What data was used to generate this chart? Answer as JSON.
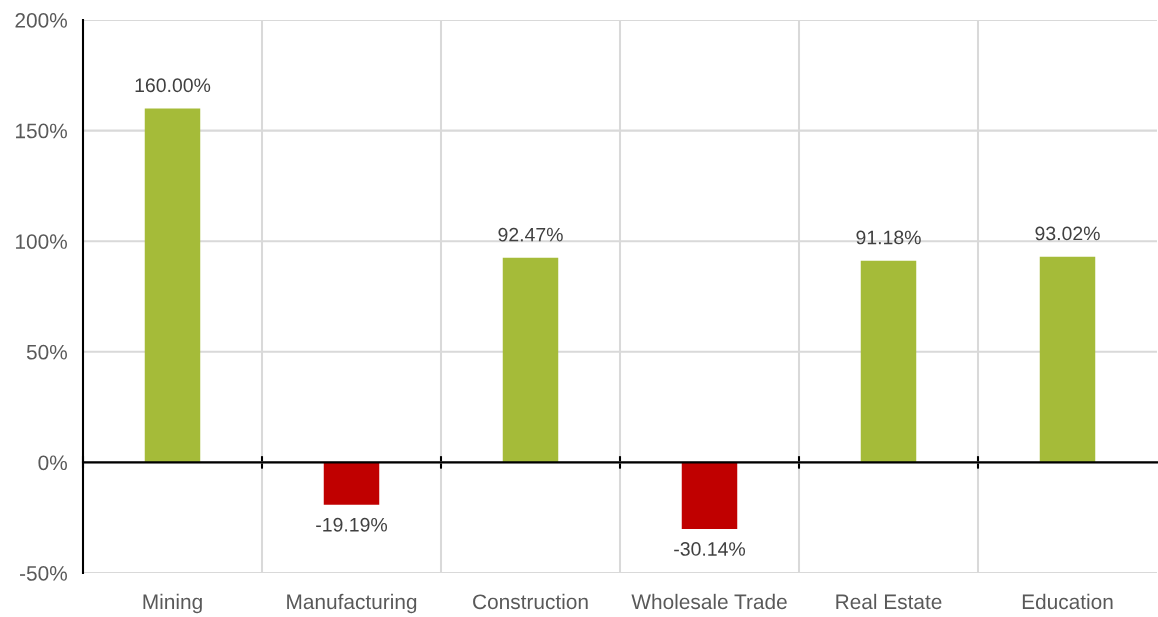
{
  "chart_data": {
    "type": "bar",
    "categories": [
      "Mining",
      "Manufacturing",
      "Construction",
      "Wholesale Trade",
      "Real Estate",
      "Education"
    ],
    "values": [
      160,
      -19.19,
      92.47,
      -30.14,
      91.18,
      93.02
    ],
    "colors": [
      "#a5bb39",
      "#c00000",
      "#a5bb39",
      "#c00000",
      "#a5bb39",
      "#a5bb39"
    ],
    "value_labels": [
      "160.00%",
      "-19.19%",
      "92.47%",
      "-30.14%",
      "91.18%",
      "93.02%"
    ],
    "ylim": [
      -50,
      200
    ],
    "yticks": [
      {
        "value": -50,
        "label": "-50%"
      },
      {
        "value": 0,
        "label": "0%"
      },
      {
        "value": 50,
        "label": "50%"
      },
      {
        "value": 100,
        "label": "100%"
      },
      {
        "value": 150,
        "label": "150%"
      },
      {
        "value": 200,
        "label": "200%"
      }
    ],
    "grid": true
  }
}
